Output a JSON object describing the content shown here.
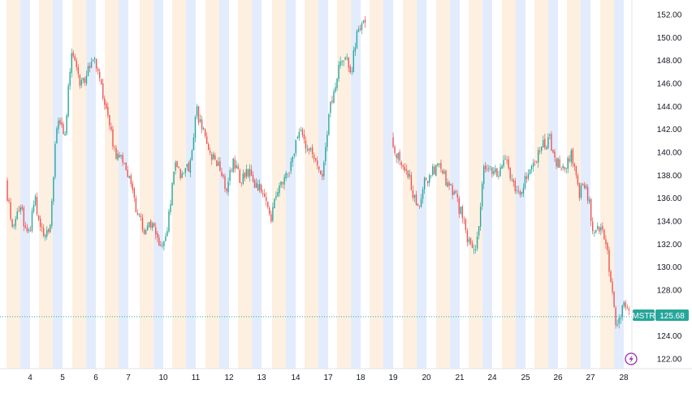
{
  "chart_data": {
    "type": "candlestick",
    "symbol": "MSTR",
    "last_price": 125.68,
    "price_label": "125.68",
    "y_ticks": [
      "122.00",
      "124.00",
      "126.00",
      "128.00",
      "130.00",
      "132.00",
      "134.00",
      "136.00",
      "138.00",
      "140.00",
      "142.00",
      "144.00",
      "146.00",
      "148.00",
      "150.00",
      "152.00"
    ],
    "ylim": [
      121.0,
      153.2
    ],
    "x_ticks": [
      "4",
      "5",
      "6",
      "7",
      "10",
      "11",
      "12",
      "13",
      "14",
      "17",
      "18",
      "19",
      "20",
      "21",
      "24",
      "25",
      "26",
      "27",
      "28"
    ],
    "grid": false,
    "session_shading": true,
    "colors": {
      "up": "#26a69a",
      "down": "#ef5350",
      "premarket": "#e3ecfd",
      "postmarket": "#fdf0e1",
      "last_price": "#26a69a",
      "axis_text": "#131722",
      "accent_icon": "#9c27b0"
    },
    "close_path": [
      [
        0,
        137.2
      ],
      [
        1,
        132.8
      ],
      [
        2,
        135.5
      ],
      [
        3,
        132.4
      ],
      [
        4,
        135.8
      ],
      [
        5,
        132.8
      ],
      [
        6,
        132.8
      ],
      [
        7,
        143.0
      ],
      [
        8,
        141.2
      ],
      [
        9,
        149.0
      ],
      [
        10,
        146.0
      ],
      [
        11,
        146.5
      ],
      [
        12,
        148.8
      ],
      [
        13,
        145.5
      ],
      [
        14,
        142.5
      ],
      [
        15,
        139.8
      ],
      [
        16,
        139.5
      ],
      [
        17,
        137.2
      ],
      [
        18,
        134.5
      ],
      [
        19,
        133.0
      ],
      [
        20,
        134.0
      ],
      [
        21,
        132.0
      ],
      [
        22,
        133.5
      ],
      [
        23,
        139.0
      ],
      [
        24,
        137.8
      ],
      [
        25,
        139.0
      ],
      [
        26,
        143.5
      ],
      [
        27,
        141.5
      ],
      [
        28,
        139.5
      ],
      [
        29,
        138.8
      ],
      [
        30,
        137.0
      ],
      [
        31,
        139.2
      ],
      [
        32,
        137.5
      ],
      [
        33,
        138.5
      ],
      [
        34,
        137.2
      ],
      [
        35,
        136.5
      ],
      [
        36,
        134.0
      ],
      [
        37,
        137.0
      ],
      [
        38,
        137.5
      ],
      [
        39,
        139.5
      ],
      [
        40,
        142.5
      ],
      [
        41,
        140.2
      ],
      [
        42,
        139.5
      ],
      [
        43,
        138.0
      ],
      [
        44,
        143.5
      ],
      [
        45,
        146.5
      ],
      [
        46,
        148.5
      ],
      [
        47,
        147.0
      ],
      [
        48,
        151.2
      ],
      [
        49,
        150.8
      ],
      [
        50,
        150.5
      ],
      [
        51,
        146.5
      ],
      [
        52,
        141.5
      ],
      [
        53,
        140.0
      ],
      [
        54,
        139.2
      ],
      [
        55,
        137.5
      ],
      [
        56,
        134.8
      ],
      [
        57,
        137.5
      ],
      [
        58,
        138.2
      ],
      [
        59,
        139.5
      ],
      [
        60,
        137.0
      ],
      [
        61,
        136.5
      ],
      [
        62,
        134.5
      ],
      [
        63,
        132.2
      ],
      [
        64,
        131.5
      ],
      [
        65,
        138.5
      ],
      [
        66,
        138.5
      ],
      [
        67,
        138.0
      ],
      [
        68,
        139.2
      ],
      [
        69,
        137.5
      ],
      [
        70,
        136.2
      ],
      [
        71,
        138.5
      ],
      [
        72,
        139.0
      ],
      [
        73,
        140.5
      ],
      [
        74,
        141.2
      ],
      [
        75,
        139.0
      ],
      [
        76,
        138.5
      ],
      [
        77,
        139.8
      ],
      [
        78,
        136.5
      ],
      [
        79,
        137.0
      ],
      [
        80,
        133.0
      ],
      [
        81,
        133.5
      ],
      [
        82,
        130.5
      ],
      [
        83,
        125.0
      ],
      [
        84,
        126.5
      ],
      [
        85,
        125.7
      ]
    ]
  }
}
